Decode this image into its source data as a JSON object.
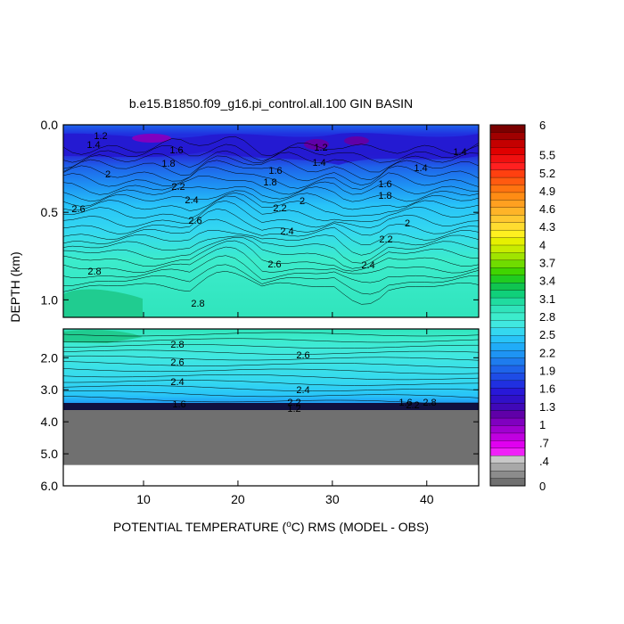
{
  "chart_data": {
    "type": "heatmap",
    "title": "b.e15.B1850.f09_g16.pi_control.all.100 GIN BASIN",
    "xlabel_prefix": "POTENTIAL TEMPERATURE (",
    "xlabel_unit_sup": "o",
    "xlabel_suffix": "C) RMS (MODEL - OBS)",
    "ylabel": "DEPTH (km)",
    "x_ticks": [
      "10",
      "20",
      "30",
      "40"
    ],
    "x_tick_values": [
      10,
      20,
      30,
      40
    ],
    "xlim": [
      1.5,
      45.5
    ],
    "upper_panel": {
      "y_ticks": [
        "0.0",
        "0.5",
        "1.0"
      ],
      "y_tick_values": [
        0.0,
        0.5,
        1.0
      ],
      "ylim": [
        0.0,
        1.1
      ]
    },
    "lower_panel": {
      "y_ticks": [
        "2.0",
        "3.0",
        "4.0",
        "5.0",
        "6.0"
      ],
      "y_tick_values": [
        2.0,
        3.0,
        4.0,
        5.0,
        6.0
      ],
      "ylim": [
        1.1,
        6.0
      ],
      "bottom_depth_km": 5.35
    },
    "colorbar": {
      "labels": [
        "6",
        "5.5",
        "5.2",
        "4.9",
        "4.6",
        "4.3",
        "4",
        "3.7",
        "3.4",
        "3.1",
        "2.8",
        "2.5",
        "2.2",
        "1.9",
        "1.6",
        "1.3",
        "1",
        ".7",
        ".4",
        "0"
      ],
      "label_values": [
        6,
        5.5,
        5.2,
        4.9,
        4.6,
        4.3,
        4,
        3.7,
        3.4,
        3.1,
        2.8,
        2.5,
        2.2,
        1.9,
        1.6,
        1.3,
        1,
        0.7,
        0.4,
        0
      ],
      "colors_top_to_bottom": [
        "#7a0000",
        "#a00000",
        "#c40000",
        "#e00000",
        "#f01010",
        "#ff2020",
        "#ff4010",
        "#ff5a10",
        "#ff7410",
        "#ff8c14",
        "#ffa020",
        "#ffb428",
        "#ffc830",
        "#ffdc30",
        "#fff020",
        "#e6f000",
        "#c8ec00",
        "#a0e400",
        "#70dc00",
        "#40d400",
        "#20cc20",
        "#10c450",
        "#10d07a",
        "#20dca0",
        "#30e4bc",
        "#3ceccc",
        "#40e8e0",
        "#34d8f0",
        "#28c4f8",
        "#20acf8",
        "#1e94f4",
        "#1e7cee",
        "#1e64ea",
        "#1e4ce6",
        "#2030e0",
        "#2818d8",
        "#3010c8",
        "#4008b8",
        "#6000a8",
        "#8000c0",
        "#a000d0",
        "#c000e0",
        "#e000f0",
        "#f020f8",
        "#c8c8c8",
        "#a8a8a8",
        "#8c8c8c",
        "#707070"
      ]
    },
    "contour_labels_upper": [
      "1.2",
      "1.4",
      "1.6",
      "1.8",
      "2",
      "2.2",
      "2.4",
      "2.6",
      "2.8",
      "1.6",
      "1.8",
      "2",
      "2.2",
      "2.4",
      "2.6",
      "1.2",
      "1.4",
      "1.6",
      "1.8",
      "2",
      "2.2",
      "2.4",
      "1.4",
      "2.6",
      "2.8",
      "1.4"
    ],
    "contour_labels_lower": [
      "2.8",
      "2.6",
      "2.4",
      "2.6",
      "2.4",
      "2.2",
      "1.6",
      "2.2",
      "1.2",
      "2.8",
      "1.6"
    ]
  }
}
